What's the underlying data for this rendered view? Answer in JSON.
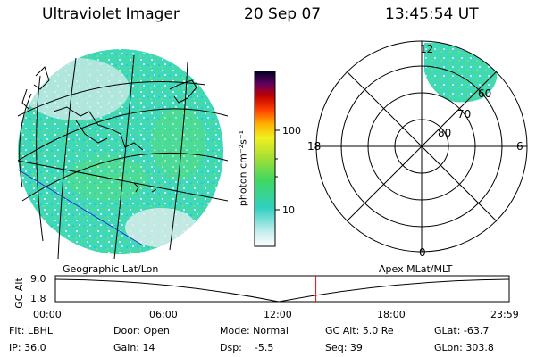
{
  "header": {
    "instrument": "Ultraviolet Imager",
    "date": "20 Sep 07",
    "time": "13:45:54 UT"
  },
  "colorbar": {
    "label": "photon cm⁻²s⁻¹",
    "tick_100": "100",
    "tick_10": "10"
  },
  "polar": {
    "mlt_top": "12",
    "mlt_left": "18",
    "mlt_right": "6",
    "mlt_bottom": "0",
    "lat_60": "60",
    "lat_70": "70",
    "lat_80": "80"
  },
  "timeline": {
    "left_label": "Geographic Lat/Lon",
    "right_label": "Apex MLat/MLT",
    "axis_title": "GC Alt",
    "y_top": "9.0",
    "y_bottom": "1.8",
    "x_ticks": [
      "00:00",
      "06:00",
      "12:00",
      "18:00",
      "23:59"
    ],
    "current_time_fraction": 0.574
  },
  "info": {
    "filter": "Flt: LBHL",
    "door": "Door: Open",
    "mode": "Mode: Normal",
    "gc_alt": "GC Alt: 5.0 Re",
    "glat": "GLat: -63.7",
    "ip": "IP: 36.0",
    "gain": "Gain: 14",
    "dsp": "Dsp:    -5.5",
    "seq": "Seq: 39",
    "glon": "GLon: 303.8"
  },
  "colors": {
    "aurora_primary": "#3fd8b8",
    "aurora_secondary": "#55e05a",
    "timeline_marker": "#ff0000",
    "grid_line": "#000000",
    "blue_line": "#2030d0"
  }
}
